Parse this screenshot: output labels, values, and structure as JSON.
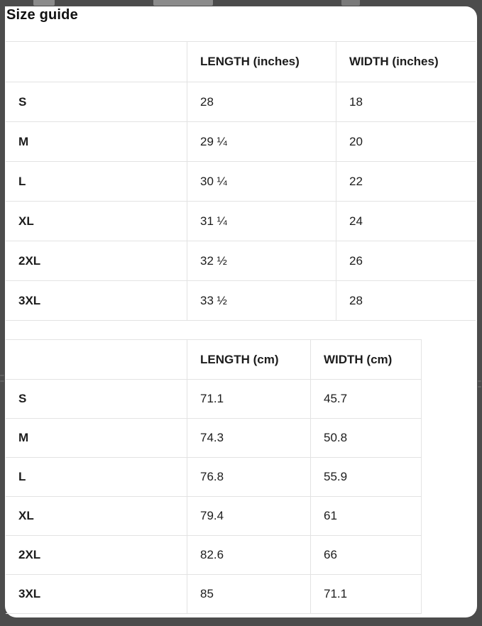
{
  "title": "Size guide",
  "tables": [
    {
      "id": "inches",
      "headers": [
        "",
        "LENGTH (inches)",
        "WIDTH (inches)"
      ],
      "rows": [
        {
          "size": "S",
          "length": "28",
          "width": "18"
        },
        {
          "size": "M",
          "length": "29 ¼",
          "width": "20"
        },
        {
          "size": "L",
          "length": "30 ¼",
          "width": "22"
        },
        {
          "size": "XL",
          "length": "31 ¼",
          "width": "24"
        },
        {
          "size": "2XL",
          "length": "32 ½",
          "width": "26"
        },
        {
          "size": "3XL",
          "length": "33 ½",
          "width": "28"
        }
      ]
    },
    {
      "id": "cm",
      "headers": [
        "",
        "LENGTH (cm)",
        "WIDTH (cm)"
      ],
      "rows": [
        {
          "size": "S",
          "length": "71.1",
          "width": "45.7"
        },
        {
          "size": "M",
          "length": "74.3",
          "width": "50.8"
        },
        {
          "size": "L",
          "length": "76.8",
          "width": "55.9"
        },
        {
          "size": "XL",
          "length": "79.4",
          "width": "61"
        },
        {
          "size": "2XL",
          "length": "82.6",
          "width": "66"
        },
        {
          "size": "3XL",
          "length": "85",
          "width": "71.1"
        }
      ]
    }
  ],
  "colors": {
    "overlay_background": "#4c4c4c",
    "panel_background": "#ffffff",
    "table_border": "#e3e3e3",
    "text": "#1c1c1c"
  }
}
